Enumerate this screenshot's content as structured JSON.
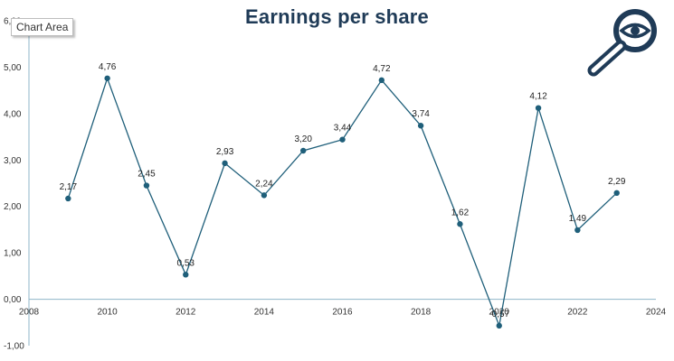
{
  "chart_data": {
    "type": "line",
    "title": "Earnings per share",
    "xlim": [
      2008,
      2024
    ],
    "x_ticks": [
      "2008",
      "2010",
      "2012",
      "2014",
      "2016",
      "2018",
      "2020",
      "2022",
      "2024"
    ],
    "ylim": [
      -1,
      6
    ],
    "y_ticks": [
      "-1,00",
      "0,00",
      "1,00",
      "2,00",
      "3,00",
      "4,00",
      "5,00",
      "6,00"
    ],
    "series": [
      {
        "x": [
          2009,
          2010,
          2011,
          2012,
          2013,
          2014,
          2015,
          2016,
          2017,
          2018,
          2019,
          2020,
          2021,
          2022,
          2023
        ],
        "values": [
          2.17,
          4.76,
          2.45,
          0.53,
          2.93,
          2.24,
          3.2,
          3.44,
          4.72,
          3.74,
          1.62,
          -0.57,
          4.12,
          1.49,
          2.29
        ],
        "labels": [
          "2,17",
          "4,76",
          "2,45",
          "0,53",
          "2,93",
          "2,24",
          "3,20",
          "3,44",
          "4,72",
          "3,74",
          "1,62",
          "-0,57",
          "4,12",
          "1,49",
          "2,29"
        ]
      }
    ],
    "grid": false,
    "legend": "none",
    "line_color": "#1f5f7a"
  },
  "tooltip": "Chart Area",
  "icons": {
    "corner": "magnifier-eye-icon"
  }
}
